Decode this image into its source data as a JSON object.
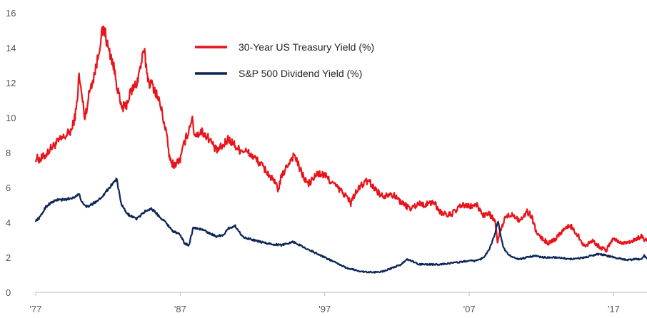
{
  "chart_data": {
    "type": "line",
    "title": "",
    "xlabel": "",
    "ylabel": "",
    "xlim": [
      1977,
      2019.3
    ],
    "ylim": [
      0,
      16
    ],
    "yticks": [
      0,
      2,
      4,
      6,
      8,
      10,
      12,
      14,
      16
    ],
    "xticks": [
      {
        "value": 1977,
        "label": "'77"
      },
      {
        "value": 1987,
        "label": "'87"
      },
      {
        "value": 1997,
        "label": "'97"
      },
      {
        "value": 2007,
        "label": "'07"
      },
      {
        "value": 2017,
        "label": "'17"
      }
    ],
    "grid": false,
    "legend": "top-center",
    "series": [
      {
        "name": "30-Year US Treasury Yield (%)",
        "color": "#e8141b",
        "x": [
          1977.0,
          1977.3,
          1977.6,
          1978.0,
          1978.5,
          1979.0,
          1979.5,
          1979.8,
          1980.0,
          1980.2,
          1980.4,
          1980.8,
          1981.0,
          1981.3,
          1981.5,
          1981.75,
          1982.0,
          1982.3,
          1982.6,
          1982.9,
          1983.2,
          1983.6,
          1984.0,
          1984.3,
          1984.5,
          1984.8,
          1985.2,
          1985.6,
          1986.0,
          1986.3,
          1986.6,
          1987.0,
          1987.3,
          1987.6,
          1987.8,
          1988.0,
          1988.5,
          1989.0,
          1989.5,
          1990.0,
          1990.3,
          1990.7,
          1991.0,
          1991.5,
          1992.0,
          1992.5,
          1993.0,
          1993.5,
          1993.8,
          1994.0,
          1994.5,
          1994.9,
          1995.3,
          1995.8,
          1996.0,
          1996.5,
          1997.0,
          1997.5,
          1998.0,
          1998.5,
          1998.8,
          1999.0,
          1999.5,
          2000.0,
          2000.5,
          2001.0,
          2001.5,
          2002.0,
          2002.5,
          2003.0,
          2003.5,
          2004.0,
          2004.5,
          2005.0,
          2005.5,
          2006.0,
          2006.5,
          2007.0,
          2007.5,
          2008.0,
          2008.4,
          2008.8,
          2008.95,
          2009.2,
          2009.5,
          2010.0,
          2010.5,
          2011.0,
          2011.3,
          2011.7,
          2012.0,
          2012.5,
          2013.0,
          2013.5,
          2014.0,
          2014.5,
          2015.0,
          2015.5,
          2016.0,
          2016.5,
          2016.8,
          2017.0,
          2017.5,
          2018.0,
          2018.5,
          2018.9,
          2019.3
        ],
        "values": [
          7.7,
          7.6,
          7.8,
          8.2,
          8.6,
          8.9,
          9.3,
          10.4,
          12.4,
          11.2,
          10.0,
          11.8,
          12.3,
          13.4,
          14.6,
          15.1,
          14.0,
          13.3,
          12.0,
          10.6,
          10.6,
          11.5,
          12.0,
          13.1,
          13.8,
          12.1,
          11.7,
          10.8,
          9.3,
          7.5,
          7.3,
          7.6,
          8.6,
          9.3,
          10.0,
          9.0,
          9.2,
          8.8,
          8.1,
          8.4,
          8.8,
          8.5,
          8.2,
          8.1,
          7.8,
          7.4,
          6.9,
          6.3,
          5.9,
          6.6,
          7.4,
          7.9,
          7.0,
          6.2,
          6.3,
          6.8,
          6.7,
          6.3,
          5.9,
          5.5,
          5.1,
          5.5,
          6.1,
          6.4,
          5.9,
          5.5,
          5.7,
          5.4,
          5.0,
          4.8,
          5.1,
          5.0,
          5.2,
          4.6,
          4.4,
          4.6,
          5.0,
          4.9,
          5.0,
          4.4,
          4.5,
          4.0,
          2.9,
          3.6,
          4.3,
          4.5,
          4.1,
          4.6,
          4.4,
          3.3,
          3.1,
          2.8,
          3.1,
          3.6,
          3.8,
          3.3,
          2.6,
          3.0,
          2.6,
          2.4,
          2.9,
          3.1,
          2.8,
          2.9,
          3.0,
          3.2,
          2.9
        ],
        "interactable": false
      },
      {
        "name": "S&P 500 Dividend Yield (%)",
        "color": "#0d2557",
        "x": [
          1977.0,
          1977.3,
          1977.7,
          1978.0,
          1978.5,
          1979.0,
          1979.5,
          1980.0,
          1980.3,
          1980.6,
          1981.0,
          1981.5,
          1982.0,
          1982.3,
          1982.6,
          1982.9,
          1983.3,
          1984.0,
          1984.5,
          1985.0,
          1985.5,
          1986.0,
          1986.5,
          1987.0,
          1987.3,
          1987.6,
          1987.9,
          1988.5,
          1989.0,
          1989.5,
          1990.0,
          1990.4,
          1990.8,
          1991.3,
          1992.0,
          1993.0,
          1994.0,
          1994.8,
          1995.5,
          1996.0,
          1997.0,
          1998.0,
          1998.5,
          1999.0,
          1999.5,
          2000.0,
          2000.5,
          2001.0,
          2001.7,
          2002.3,
          2002.7,
          2003.0,
          2003.5,
          2004.0,
          2005.0,
          2006.0,
          2007.0,
          2007.5,
          2008.0,
          2008.4,
          2008.8,
          2009.0,
          2009.2,
          2009.4,
          2009.7,
          2010.0,
          2010.5,
          2011.0,
          2011.7,
          2012.0,
          2013.0,
          2014.0,
          2015.0,
          2016.0,
          2016.5,
          2017.0,
          2018.0,
          2018.5,
          2018.95,
          2019.1,
          2019.3
        ],
        "values": [
          4.1,
          4.3,
          4.9,
          5.1,
          5.3,
          5.3,
          5.4,
          5.6,
          5.0,
          4.9,
          5.1,
          5.4,
          5.9,
          6.2,
          6.5,
          5.1,
          4.5,
          4.2,
          4.6,
          4.8,
          4.4,
          4.0,
          3.5,
          3.3,
          2.8,
          2.7,
          3.7,
          3.6,
          3.4,
          3.2,
          3.3,
          3.7,
          3.8,
          3.2,
          3.0,
          2.8,
          2.7,
          2.9,
          2.6,
          2.4,
          2.0,
          1.6,
          1.4,
          1.3,
          1.2,
          1.15,
          1.15,
          1.2,
          1.4,
          1.6,
          1.9,
          1.8,
          1.6,
          1.6,
          1.6,
          1.7,
          1.8,
          1.8,
          2.0,
          2.5,
          3.4,
          4.1,
          3.1,
          2.5,
          2.2,
          2.0,
          1.9,
          2.0,
          2.1,
          2.0,
          2.0,
          1.9,
          2.0,
          2.2,
          2.1,
          2.0,
          1.85,
          1.9,
          1.9,
          2.1,
          1.9
        ],
        "interactable": false
      }
    ]
  }
}
